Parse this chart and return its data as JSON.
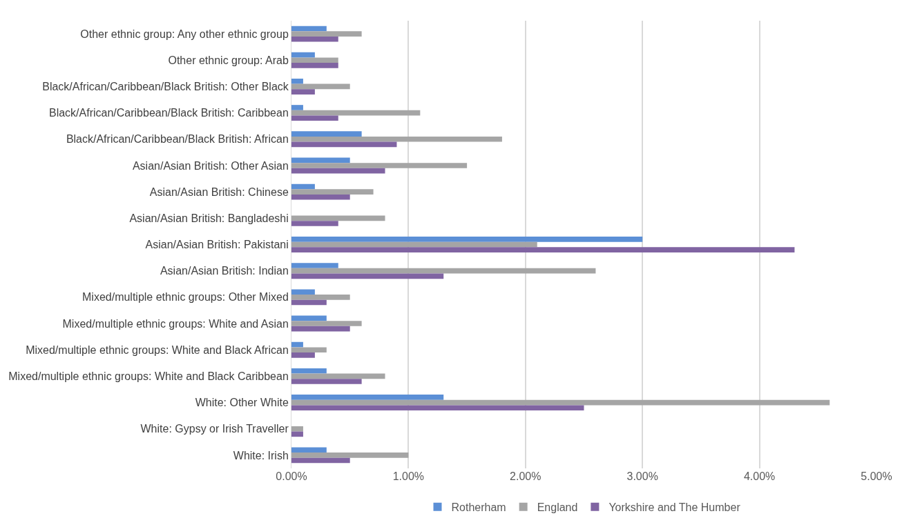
{
  "chart_data": {
    "type": "bar",
    "orientation": "horizontal",
    "categories": [
      "Other ethnic group: Any other ethnic group",
      "Other ethnic group: Arab",
      "Black/African/Caribbean/Black British: Other Black",
      "Black/African/Caribbean/Black British: Caribbean",
      "Black/African/Caribbean/Black British: African",
      "Asian/Asian British: Other Asian",
      "Asian/Asian British: Chinese",
      "Asian/Asian British: Bangladeshi",
      "Asian/Asian British: Pakistani",
      "Asian/Asian British: Indian",
      "Mixed/multiple ethnic groups: Other Mixed",
      "Mixed/multiple ethnic groups: White and Asian",
      "Mixed/multiple ethnic groups: White and Black African",
      "Mixed/multiple ethnic groups: White and Black Caribbean",
      "White: Other White",
      "White: Gypsy or Irish Traveller",
      "White: Irish"
    ],
    "series": [
      {
        "name": "Rotherham",
        "color": "#5b8fd6",
        "values": [
          0.3,
          0.2,
          0.1,
          0.1,
          0.6,
          0.5,
          0.2,
          null,
          3.0,
          0.4,
          0.2,
          0.3,
          0.1,
          0.3,
          1.3,
          null,
          0.3
        ]
      },
      {
        "name": "England",
        "color": "#a5a5a5",
        "values": [
          0.6,
          0.4,
          0.5,
          1.1,
          1.8,
          1.5,
          0.7,
          0.8,
          2.1,
          2.6,
          0.5,
          0.6,
          0.3,
          0.8,
          4.6,
          0.1,
          1.0
        ]
      },
      {
        "name": "Yorkshire and The Humber",
        "color": "#8064a2",
        "values": [
          0.4,
          0.4,
          0.2,
          0.4,
          0.9,
          0.8,
          0.5,
          0.4,
          4.3,
          1.3,
          0.3,
          0.5,
          0.2,
          0.6,
          2.5,
          0.1,
          0.5
        ]
      }
    ],
    "xlim": [
      0,
      5
    ],
    "xticks": [
      {
        "value": 0,
        "label": "0.00%"
      },
      {
        "value": 1,
        "label": "1.00%"
      },
      {
        "value": 2,
        "label": "2.00%"
      },
      {
        "value": 3,
        "label": "3.00%"
      },
      {
        "value": 4,
        "label": "4.00%"
      },
      {
        "value": 5,
        "label": "5.00%"
      }
    ],
    "grid": "x",
    "legend": "bottom"
  }
}
